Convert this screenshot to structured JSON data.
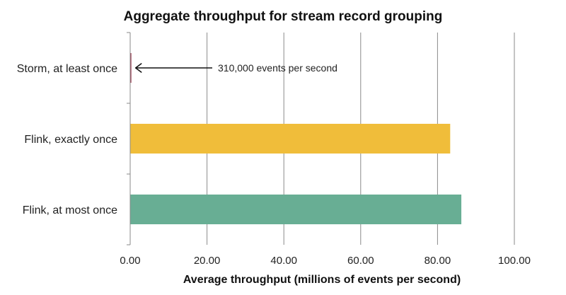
{
  "chart_data": {
    "type": "bar",
    "orientation": "horizontal",
    "title": "Aggregate throughput for stream record grouping",
    "xlabel": "Average throughput (millions of events per second)",
    "ylabel": "",
    "xlim": [
      0,
      100
    ],
    "x_ticks": [
      "0.00",
      "20.00",
      "40.00",
      "60.00",
      "80.00",
      "100.00"
    ],
    "x_tick_values": [
      0,
      20,
      40,
      60,
      80,
      100
    ],
    "grid": true,
    "categories": [
      "Storm, at least once",
      "Flink, exactly once",
      "Flink, at most once"
    ],
    "values": [
      0.31,
      83.3,
      86.2
    ],
    "colors": [
      "#a0465a",
      "#f0bd3a",
      "#68ae94"
    ],
    "annotation": {
      "text": "310,000 events per second",
      "target_category": "Storm, at least once"
    }
  }
}
